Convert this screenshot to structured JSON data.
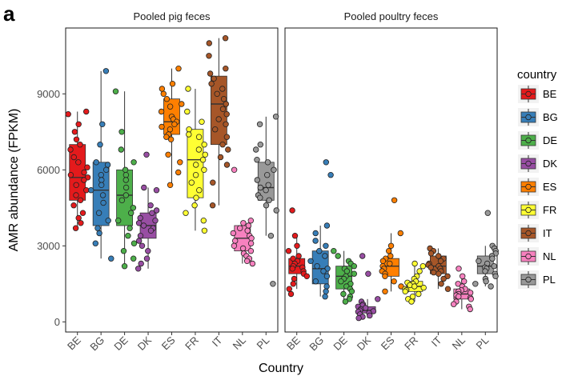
{
  "panel_label": "a",
  "chart_data": {
    "type": "box",
    "categories": [
      "BE",
      "BG",
      "DE",
      "DK",
      "ES",
      "FR",
      "IT",
      "NL",
      "PL"
    ],
    "ylabel": "AMR abundance (FPKM)",
    "xlabel": "Country",
    "ylim": [
      -400,
      11600
    ],
    "yticks": [
      0,
      3000,
      6000,
      9000
    ],
    "grid": false,
    "legend": {
      "title": "country",
      "position": "right",
      "entries": [
        "BE",
        "BG",
        "DE",
        "DK",
        "ES",
        "FR",
        "IT",
        "NL",
        "PL"
      ]
    },
    "colors": {
      "BE": "#e41a1c",
      "BG": "#377eb8",
      "DE": "#4daf4a",
      "DK": "#984ea3",
      "ES": "#ff7f00",
      "FR": "#ffff33",
      "IT": "#a65628",
      "NL": "#f781bf",
      "PL": "#999999"
    },
    "panels": [
      {
        "title": "Pooled pig feces",
        "boxes": [
          {
            "category": "BE",
            "q1": 4800,
            "median": 5700,
            "q3": 7000,
            "whisker_low": 3700,
            "whisker_high": 8300
          },
          {
            "category": "BG",
            "q1": 3800,
            "median": 5200,
            "q3": 6300,
            "whisker_low": 2500,
            "whisker_high": 9900
          },
          {
            "category": "DE",
            "q1": 3800,
            "median": 5000,
            "q3": 6000,
            "whisker_low": 2200,
            "whisker_high": 9100
          },
          {
            "category": "DK",
            "q1": 3300,
            "median": 3800,
            "q3": 4300,
            "whisker_low": 2100,
            "whisker_high": 5300
          },
          {
            "category": "ES",
            "q1": 7400,
            "median": 7900,
            "q3": 8800,
            "whisker_low": 5400,
            "whisker_high": 10000
          },
          {
            "category": "FR",
            "q1": 4900,
            "median": 6400,
            "q3": 7600,
            "whisker_low": 3600,
            "whisker_high": 9200
          },
          {
            "category": "IT",
            "q1": 7000,
            "median": 8600,
            "q3": 9700,
            "whisker_low": 4600,
            "whisker_high": 11200
          },
          {
            "category": "NL",
            "q1": 2800,
            "median": 3300,
            "q3": 3800,
            "whisker_low": 2300,
            "whisker_high": 4000
          },
          {
            "category": "PL",
            "q1": 4800,
            "median": 5300,
            "q3": 6300,
            "whisker_low": 3400,
            "whisker_high": 8100
          }
        ],
        "points": {
          "BE": [
            8300,
            8200,
            7800,
            7500,
            7200,
            7000,
            6800,
            6500,
            6300,
            6100,
            5900,
            5800,
            5700,
            5600,
            5400,
            5200,
            5000,
            4800,
            4600,
            4300,
            4100,
            3900,
            3700
          ],
          "BG": [
            9900,
            7800,
            7000,
            6300,
            6200,
            6000,
            5800,
            5600,
            5400,
            5200,
            5000,
            4700,
            4300,
            4000,
            3700,
            3500,
            3100,
            2500
          ],
          "DE": [
            9100,
            7500,
            6800,
            6300,
            6000,
            5800,
            5600,
            5300,
            5000,
            4800,
            4500,
            4300,
            4000,
            3700,
            3400,
            3100,
            2800,
            2500,
            2200
          ],
          "DK": [
            6600,
            5300,
            5200,
            4600,
            4400,
            4300,
            4100,
            4000,
            3900,
            3800,
            3700,
            3600,
            3400,
            3200,
            3000,
            2800,
            2500,
            2300,
            2100
          ],
          "ES": [
            10000,
            9400,
            9200,
            9000,
            8800,
            8600,
            8500,
            8300,
            8100,
            8000,
            7900,
            7800,
            7700,
            7600,
            7400,
            7300,
            7200,
            6600,
            6300,
            5900,
            5400
          ],
          "FR": [
            9200,
            8300,
            7900,
            7600,
            7400,
            7300,
            7000,
            6800,
            6600,
            6400,
            6200,
            6000,
            5800,
            5500,
            5200,
            4900,
            4600,
            4300,
            4000,
            3600
          ],
          "IT": [
            11200,
            11000,
            10500,
            10000,
            9800,
            9600,
            9400,
            9200,
            9000,
            8800,
            8600,
            8400,
            8200,
            8000,
            7800,
            7600,
            7300,
            7000,
            6800,
            6500,
            6200,
            5500,
            4600
          ],
          "NL": [
            6000,
            4000,
            3900,
            3800,
            3700,
            3600,
            3500,
            3400,
            3300,
            3200,
            3100,
            3000,
            2900,
            2800,
            2700,
            2600,
            2500,
            2400,
            2300
          ],
          "PL": [
            8100,
            7800,
            7000,
            6800,
            6400,
            6300,
            6000,
            5800,
            5600,
            5400,
            5300,
            5200,
            5000,
            4900,
            4800,
            4600,
            4400,
            3400,
            1500
          ]
        }
      },
      {
        "title": "Pooled poultry feces",
        "boxes": [
          {
            "category": "BE",
            "q1": 1900,
            "median": 2200,
            "q3": 2500,
            "whisker_low": 1300,
            "whisker_high": 3400
          },
          {
            "category": "BG",
            "q1": 1500,
            "median": 2100,
            "q3": 2800,
            "whisker_low": 1000,
            "whisker_high": 3800
          },
          {
            "category": "DE",
            "q1": 1300,
            "median": 1800,
            "q3": 2200,
            "whisker_low": 800,
            "whisker_high": 2800
          },
          {
            "category": "DK",
            "q1": 350,
            "median": 450,
            "q3": 600,
            "whisker_low": 150,
            "whisker_high": 900
          },
          {
            "category": "ES",
            "q1": 1800,
            "median": 2200,
            "q3": 2500,
            "whisker_low": 1200,
            "whisker_high": 3500
          },
          {
            "category": "FR",
            "q1": 1200,
            "median": 1400,
            "q3": 1600,
            "whisker_low": 800,
            "whisker_high": 2200
          },
          {
            "category": "IT",
            "q1": 1900,
            "median": 2200,
            "q3": 2600,
            "whisker_low": 1300,
            "whisker_high": 2900
          },
          {
            "category": "NL",
            "q1": 900,
            "median": 1100,
            "q3": 1300,
            "whisker_low": 500,
            "whisker_high": 1800
          },
          {
            "category": "PL",
            "q1": 1900,
            "median": 2200,
            "q3": 2600,
            "whisker_low": 1400,
            "whisker_high": 3000
          }
        ],
        "points": {
          "BE": [
            4400,
            3400,
            3000,
            2800,
            2600,
            2500,
            2400,
            2300,
            2200,
            2150,
            2100,
            2000,
            1900,
            1800,
            1700,
            1500,
            1300,
            1100
          ],
          "BG": [
            6300,
            5800,
            3800,
            3500,
            3200,
            3000,
            2800,
            2600,
            2400,
            2200,
            2100,
            2000,
            1800,
            1600,
            1400,
            1200,
            1000
          ],
          "DE": [
            2800,
            2600,
            2400,
            2300,
            2200,
            2100,
            2000,
            1900,
            1800,
            1700,
            1600,
            1500,
            1400,
            1300,
            1200,
            1100,
            1000,
            900,
            800
          ],
          "DK": [
            2600,
            1900,
            900,
            800,
            700,
            650,
            600,
            550,
            500,
            450,
            420,
            400,
            350,
            300,
            250,
            200,
            150
          ],
          "ES": [
            4800,
            3500,
            3000,
            2800,
            2600,
            2500,
            2400,
            2300,
            2200,
            2100,
            2000,
            1900,
            1800,
            1600,
            1400,
            1200
          ],
          "FR": [
            2300,
            2200,
            2000,
            1800,
            1700,
            1600,
            1550,
            1500,
            1450,
            1400,
            1350,
            1300,
            1250,
            1200,
            1100,
            1000,
            900,
            800
          ],
          "IT": [
            2900,
            2800,
            2700,
            2600,
            2500,
            2400,
            2300,
            2250,
            2200,
            2150,
            2100,
            2000,
            1950,
            1900,
            1800,
            1700,
            1500,
            1300
          ],
          "NL": [
            2100,
            1800,
            1600,
            1500,
            1400,
            1300,
            1250,
            1200,
            1150,
            1100,
            1050,
            1000,
            950,
            900,
            800,
            700,
            600,
            500
          ],
          "PL": [
            4300,
            3000,
            2900,
            2800,
            2700,
            2600,
            2500,
            2400,
            2300,
            2200,
            2150,
            2100,
            2000,
            1900,
            1800,
            1700,
            1600,
            1500,
            1400
          ]
        }
      }
    ]
  }
}
